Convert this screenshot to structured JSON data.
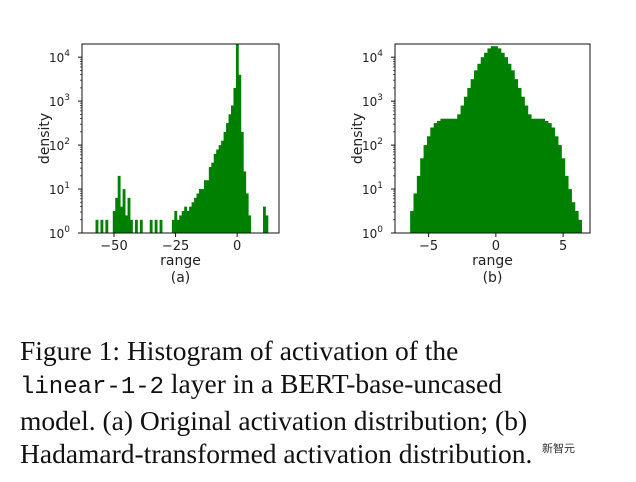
{
  "chart_data": [
    {
      "type": "bar",
      "title": "",
      "xlabel": "range",
      "ylabel": "density",
      "sublabel": "(a)",
      "xlim": [
        -63,
        17
      ],
      "ylim_log10": [
        0,
        4.3
      ],
      "yscale": "log",
      "xticks": [
        -50,
        -25,
        0
      ],
      "xtick_labels": [
        "−50",
        "−25",
        "0"
      ],
      "yticks": [
        {
          "base": "10",
          "exp": "0"
        },
        {
          "base": "10",
          "exp": "1"
        },
        {
          "base": "10",
          "exp": "2"
        },
        {
          "base": "10",
          "exp": "3"
        },
        {
          "base": "10",
          "exp": "4"
        }
      ],
      "color": "#008000",
      "x": [
        -57,
        -56,
        -55,
        -54,
        -53,
        -50,
        -49,
        -48,
        -47,
        -46,
        -45,
        -44,
        -43,
        -42,
        -41,
        -40,
        -39,
        -35,
        -34,
        -33,
        -32,
        -31,
        -26,
        -25,
        -24,
        -23,
        -22,
        -21,
        -20,
        -19,
        -18,
        -17,
        -16,
        -15,
        -14,
        -13,
        -12,
        -11,
        -10,
        -9,
        -8,
        -7,
        -6,
        -5,
        -4,
        -3,
        -2,
        -1,
        0,
        1,
        2,
        3,
        4,
        5,
        11,
        12
      ],
      "log10_density": [
        0.3,
        0,
        0.3,
        0,
        0.3,
        0.5,
        0.8,
        1.3,
        0.6,
        1.0,
        0.4,
        0.8,
        0.3,
        0,
        0.3,
        0,
        0.3,
        0.3,
        0,
        0.3,
        0,
        0.3,
        0.3,
        0.5,
        0.3,
        0.4,
        0.5,
        0.6,
        0.5,
        0.6,
        0.7,
        0.8,
        0.9,
        1.0,
        1.0,
        1.2,
        1.2,
        1.5,
        1.6,
        1.8,
        1.9,
        2.0,
        2.1,
        2.3,
        2.5,
        2.7,
        2.9,
        3.3,
        4.3,
        3.6,
        2.3,
        1.4,
        0.9,
        0.4,
        0.6,
        0.4
      ]
    },
    {
      "type": "bar",
      "title": "",
      "xlabel": "range",
      "ylabel": "density",
      "sublabel": "(b)",
      "xlim": [
        -7.5,
        7
      ],
      "ylim_log10": [
        0,
        4.3
      ],
      "yscale": "log",
      "xticks": [
        -5,
        0,
        5
      ],
      "xtick_labels": [
        "−5",
        "0",
        "5"
      ],
      "yticks": [
        {
          "base": "10",
          "exp": "0"
        },
        {
          "base": "10",
          "exp": "1"
        },
        {
          "base": "10",
          "exp": "2"
        },
        {
          "base": "10",
          "exp": "3"
        },
        {
          "base": "10",
          "exp": "4"
        }
      ],
      "color": "#008000",
      "x": [
        -6.25,
        -6.0,
        -5.75,
        -5.5,
        -5.25,
        -5.0,
        -4.75,
        -4.5,
        -4.25,
        -4.0,
        -3.75,
        -3.5,
        -3.25,
        -3.0,
        -2.75,
        -2.5,
        -2.25,
        -2.0,
        -1.75,
        -1.5,
        -1.25,
        -1.0,
        -0.75,
        -0.5,
        -0.25,
        0.0,
        0.25,
        0.5,
        0.75,
        1.0,
        1.25,
        1.5,
        1.75,
        2.0,
        2.25,
        2.5,
        2.75,
        3.0,
        3.25,
        3.5,
        3.75,
        4.0,
        4.25,
        4.5,
        4.75,
        5.0,
        5.25,
        5.5,
        5.75,
        6.0,
        6.25,
        6.5
      ],
      "log10_density": [
        0.5,
        0.9,
        1.3,
        1.7,
        2.0,
        2.2,
        2.4,
        2.5,
        2.55,
        2.6,
        2.6,
        2.6,
        2.6,
        2.6,
        2.7,
        2.9,
        3.1,
        3.3,
        3.5,
        3.7,
        3.85,
        4.0,
        4.1,
        4.2,
        4.25,
        4.25,
        4.2,
        4.1,
        4.0,
        3.85,
        3.7,
        3.5,
        3.3,
        3.1,
        2.9,
        2.7,
        2.6,
        2.6,
        2.6,
        2.6,
        2.55,
        2.5,
        2.4,
        2.2,
        2.0,
        1.7,
        1.3,
        1.0,
        0.7,
        0.5,
        0.3,
        0.0
      ]
    }
  ],
  "caption": {
    "line1": "Figure 1:  Histogram of activation of the",
    "line2_code": "linear-1-2",
    "line2_rest": " layer in a BERT-base-uncased",
    "line3": "model. (a) Original activation distribution; (b)",
    "line4": "Hadamard-transformed activation distribution."
  },
  "watermark": "新智元"
}
